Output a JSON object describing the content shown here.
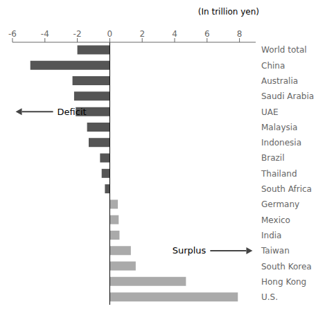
{
  "chart_data": {
    "type": "bar",
    "orientation": "horizontal",
    "x_label": "(In trillion yen)",
    "annotations": [
      "Deficit",
      "Surplus"
    ],
    "categories": [
      "World total",
      "China",
      "Australia",
      "Saudi Arabia",
      "UAE",
      "Malaysia",
      "Indonesia",
      "Brazil",
      "Thailand",
      "South Africa",
      "Germany",
      "Mexico",
      "India",
      "Taiwan",
      "South Korea",
      "Hong Kong",
      "U.S."
    ],
    "values": [
      -2.0,
      -4.9,
      -2.3,
      -2.2,
      -2.1,
      -1.4,
      -1.3,
      -0.6,
      -0.5,
      -0.3,
      0.5,
      0.55,
      0.6,
      1.3,
      1.6,
      4.7,
      7.9
    ],
    "colors": [
      "#555555",
      "#555555",
      "#555555",
      "#555555",
      "#555555",
      "#555555",
      "#555555",
      "#555555",
      "#555555",
      "#555555",
      "#aaaaaa",
      "#aaaaaa",
      "#aaaaaa",
      "#aaaaaa",
      "#aaaaaa",
      "#aaaaaa",
      "#aaaaaa"
    ],
    "xlim": [
      -6,
      9
    ],
    "xticks": [
      -6,
      -4,
      -2,
      0,
      2,
      4,
      6,
      8
    ]
  }
}
